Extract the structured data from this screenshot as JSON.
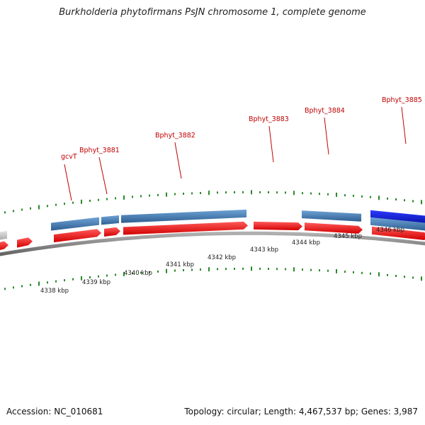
{
  "title": "Burkholderia phytofirmans PsJN chromosome 1, complete genome",
  "gene_labels": [
    "gcvT",
    "Bphyt_3881",
    "Bphyt_3882",
    "Bphyt_3883",
    "Bphyt_3884",
    "Bphyt_3885"
  ],
  "scale_labels": [
    "4338 kbp",
    "4339 kbp",
    "4340 kbp",
    "4341 kbp",
    "4342 kbp",
    "4343 kbp",
    "4344 kbp",
    "4345 kbp",
    "4346 kbp"
  ],
  "footer": {
    "accession": "Accession: NC_010681",
    "stats": "Topology: circular; Length: 4,467,537 bp; Genes: 3,987"
  },
  "colors": {
    "gene_forward": "#ff1a1a",
    "gene_cds": "#4f86bd",
    "gene_highlight": "#1020e0",
    "gene_other": "#c8c8c8",
    "label": "#c00000",
    "tick": "#2a8a2a",
    "backbone": "#808080"
  }
}
